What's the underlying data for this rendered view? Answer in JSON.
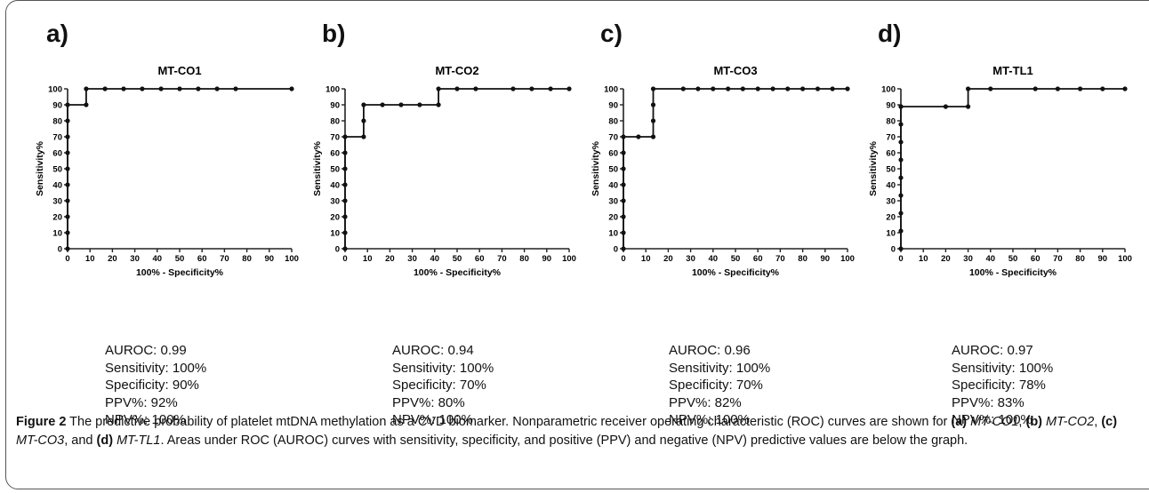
{
  "chart_data": [
    {
      "type": "line",
      "panel": "a)",
      "title": "MT-CO1",
      "xlabel": "100% - Specificity%",
      "ylabel": "Sensitivity%",
      "xlim": [
        0,
        100
      ],
      "ylim": [
        0,
        100
      ],
      "xticks": [
        "0",
        "10",
        "20",
        "30",
        "40",
        "50",
        "60",
        "70",
        "80",
        "90",
        "100"
      ],
      "yticks": [
        "0",
        "10",
        "20",
        "30",
        "40",
        "50",
        "60",
        "70",
        "80",
        "90",
        "100"
      ],
      "x": [
        0,
        0,
        0,
        0,
        0,
        0,
        0,
        0,
        0,
        0,
        8.3,
        8.3,
        16.7,
        25,
        33.3,
        41.7,
        50,
        58.3,
        66.7,
        75,
        100
      ],
      "y": [
        0,
        10,
        20,
        30,
        40,
        50,
        60,
        70,
        80,
        90,
        90,
        100,
        100,
        100,
        100,
        100,
        100,
        100,
        100,
        100,
        100
      ],
      "stats": [
        "AUROC: 0.99",
        "Sensitivity: 100%",
        "Specificity: 90%",
        "PPV%: 92%",
        "NPV%: 100%"
      ]
    },
    {
      "type": "line",
      "panel": "b)",
      "title": "MT-CO2",
      "xlabel": "100% - Specificity%",
      "ylabel": "Sensitivity%",
      "xlim": [
        0,
        100
      ],
      "ylim": [
        0,
        100
      ],
      "xticks": [
        "0",
        "10",
        "20",
        "30",
        "40",
        "50",
        "60",
        "70",
        "80",
        "90",
        "100"
      ],
      "yticks": [
        "0",
        "10",
        "20",
        "30",
        "40",
        "50",
        "60",
        "70",
        "80",
        "90",
        "100"
      ],
      "x": [
        0,
        0,
        0,
        0,
        0,
        0,
        0,
        0,
        8.3,
        8.3,
        8.3,
        16.7,
        25,
        33.3,
        41.7,
        41.7,
        50,
        58.3,
        75,
        83.3,
        91.7,
        100
      ],
      "y": [
        0,
        10,
        20,
        30,
        40,
        50,
        60,
        70,
        70,
        80,
        90,
        90,
        90,
        90,
        90,
        100,
        100,
        100,
        100,
        100,
        100,
        100
      ],
      "stats": [
        "AUROC: 0.94",
        "Sensitivity: 100%",
        "Specificity: 70%",
        "PPV%: 80%",
        "NPV%: 100%"
      ]
    },
    {
      "type": "line",
      "panel": "c)",
      "title": "MT-CO3",
      "xlabel": "100% - Specificity%",
      "ylabel": "Sensitivity%",
      "xlim": [
        0,
        100
      ],
      "ylim": [
        0,
        100
      ],
      "xticks": [
        "0",
        "10",
        "20",
        "30",
        "40",
        "50",
        "60",
        "70",
        "80",
        "90",
        "100"
      ],
      "yticks": [
        "0",
        "10",
        "20",
        "30",
        "40",
        "50",
        "60",
        "70",
        "80",
        "90",
        "100"
      ],
      "x": [
        0,
        0,
        0,
        0,
        0,
        0,
        0,
        0,
        6.7,
        13.3,
        13.3,
        13.3,
        13.3,
        26.7,
        33.3,
        40,
        46.7,
        53.3,
        60,
        66.7,
        73.3,
        80,
        86.7,
        93.3,
        100
      ],
      "y": [
        0,
        10,
        20,
        30,
        40,
        50,
        60,
        70,
        70,
        70,
        80,
        90,
        100,
        100,
        100,
        100,
        100,
        100,
        100,
        100,
        100,
        100,
        100,
        100,
        100
      ],
      "stats": [
        "AUROC: 0.96",
        "Sensitivity: 100%",
        "Specificity: 70%",
        "PPV%: 82%",
        "NPV%: 100%"
      ]
    },
    {
      "type": "line",
      "panel": "d)",
      "title": "MT-TL1",
      "xlabel": "100% - Specificity%",
      "ylabel": "Sensitivity%",
      "xlim": [
        0,
        100
      ],
      "ylim": [
        0,
        100
      ],
      "xticks": [
        "0",
        "10",
        "20",
        "30",
        "40",
        "50",
        "60",
        "70",
        "80",
        "90",
        "100"
      ],
      "yticks": [
        "0",
        "10",
        "20",
        "30",
        "40",
        "50",
        "60",
        "70",
        "80",
        "90",
        "100"
      ],
      "x": [
        0,
        0,
        0,
        0,
        0,
        0,
        0,
        0,
        0,
        0,
        20,
        30,
        30,
        40,
        60,
        70,
        80,
        90,
        100
      ],
      "y": [
        0,
        11.1,
        22.2,
        33.3,
        44.4,
        55.6,
        66.7,
        77.8,
        88.9,
        88.9,
        88.9,
        88.9,
        100,
        100,
        100,
        100,
        100,
        100,
        100
      ],
      "stats": [
        "AUROC: 0.97",
        "Sensitivity: 100%",
        "Specificity: 78%",
        "PPV%: 83%",
        "NPV%: 100%"
      ]
    }
  ],
  "caption": {
    "label": "Figure 2",
    "parts": [
      {
        "t": " The predictive probability of platelet mtDNA methylation as a CVD biomarker. Nonparametric receiver operating characteristic (ROC) curves are shown for "
      },
      {
        "t": "(a)",
        "b": true
      },
      {
        "t": " "
      },
      {
        "t": "MT-CO1",
        "i": true
      },
      {
        "t": ", "
      },
      {
        "t": "(b)",
        "b": true
      },
      {
        "t": " "
      },
      {
        "t": "MT-CO2",
        "i": true
      },
      {
        "t": ", "
      },
      {
        "t": "(c)",
        "b": true
      },
      {
        "t": " "
      },
      {
        "t": "MT-CO3",
        "i": true
      },
      {
        "t": ", and "
      },
      {
        "t": "(d)",
        "b": true
      },
      {
        "t": " "
      },
      {
        "t": "MT-TL1",
        "i": true
      },
      {
        "t": ". Areas under ROC (AUROC) curves with sensitivity, specificity, and positive (PPV) and negative (NPV) predictive values are below the graph."
      }
    ]
  }
}
